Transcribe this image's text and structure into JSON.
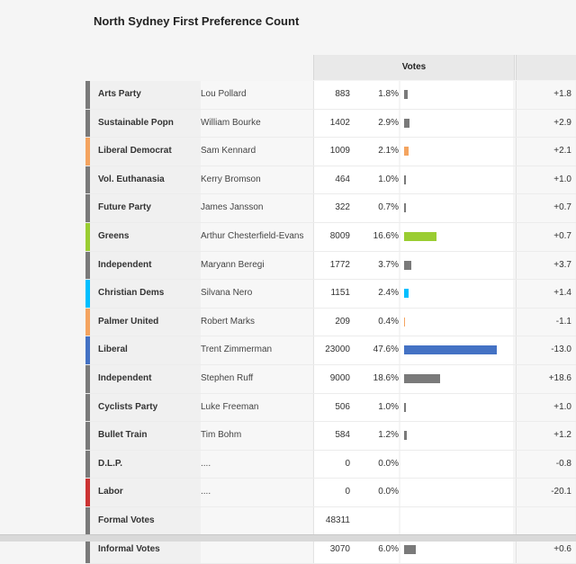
{
  "title": "North Sydney First Preference Count",
  "header": {
    "votes": "Votes"
  },
  "rows": [
    {
      "party": "Arts Party",
      "candidate": "Lou Pollard",
      "votes": "883",
      "pct": "1.8%",
      "share": 1.8,
      "change": "+1.8",
      "color": "#7a7a7a"
    },
    {
      "party": "Sustainable Popn",
      "candidate": "William Bourke",
      "votes": "1402",
      "pct": "2.9%",
      "share": 2.9,
      "change": "+2.9",
      "color": "#7a7a7a"
    },
    {
      "party": "Liberal Democrat",
      "candidate": "Sam Kennard",
      "votes": "1009",
      "pct": "2.1%",
      "share": 2.1,
      "change": "+2.1",
      "color": "#f4a460"
    },
    {
      "party": "Vol. Euthanasia",
      "candidate": "Kerry Bromson",
      "votes": "464",
      "pct": "1.0%",
      "share": 1.0,
      "change": "+1.0",
      "color": "#7a7a7a"
    },
    {
      "party": "Future Party",
      "candidate": "James Jansson",
      "votes": "322",
      "pct": "0.7%",
      "share": 0.7,
      "change": "+0.7",
      "color": "#7a7a7a"
    },
    {
      "party": "Greens",
      "candidate": "Arthur Chesterfield-Evans",
      "votes": "8009",
      "pct": "16.6%",
      "share": 16.6,
      "change": "+0.7",
      "color": "#9acd32"
    },
    {
      "party": "Independent",
      "candidate": "Maryann Beregi",
      "votes": "1772",
      "pct": "3.7%",
      "share": 3.7,
      "change": "+3.7",
      "color": "#7a7a7a"
    },
    {
      "party": "Christian Dems",
      "candidate": "Silvana Nero",
      "votes": "1151",
      "pct": "2.4%",
      "share": 2.4,
      "change": "+1.4",
      "color": "#00bfff"
    },
    {
      "party": "Palmer United",
      "candidate": "Robert Marks",
      "votes": "209",
      "pct": "0.4%",
      "share": 0.4,
      "change": "-1.1",
      "color": "#f4a460"
    },
    {
      "party": "Liberal",
      "candidate": "Trent Zimmerman",
      "votes": "23000",
      "pct": "47.6%",
      "share": 47.6,
      "change": "-13.0",
      "color": "#4472c4"
    },
    {
      "party": "Independent",
      "candidate": "Stephen Ruff",
      "votes": "9000",
      "pct": "18.6%",
      "share": 18.6,
      "change": "+18.6",
      "color": "#7a7a7a"
    },
    {
      "party": "Cyclists Party",
      "candidate": "Luke Freeman",
      "votes": "506",
      "pct": "1.0%",
      "share": 1.0,
      "change": "+1.0",
      "color": "#7a7a7a"
    },
    {
      "party": "Bullet Train",
      "candidate": "Tim Bohm",
      "votes": "584",
      "pct": "1.2%",
      "share": 1.2,
      "change": "+1.2",
      "color": "#7a7a7a"
    },
    {
      "party": "D.L.P.",
      "candidate": "....",
      "votes": "0",
      "pct": "0.0%",
      "share": 0,
      "change": "-0.8",
      "color": "#7a7a7a"
    },
    {
      "party": "Labor",
      "candidate": "....",
      "votes": "0",
      "pct": "0.0%",
      "share": 0,
      "change": "-20.1",
      "color": "#cc3333"
    },
    {
      "party": "Formal Votes",
      "candidate": "",
      "votes": "48311",
      "pct": "",
      "share": null,
      "change": "",
      "color": "#7a7a7a"
    },
    {
      "party": "Informal Votes",
      "candidate": "",
      "votes": "3070",
      "pct": "6.0%",
      "share": 6.0,
      "change": "+0.6",
      "color": "#7a7a7a"
    }
  ]
}
